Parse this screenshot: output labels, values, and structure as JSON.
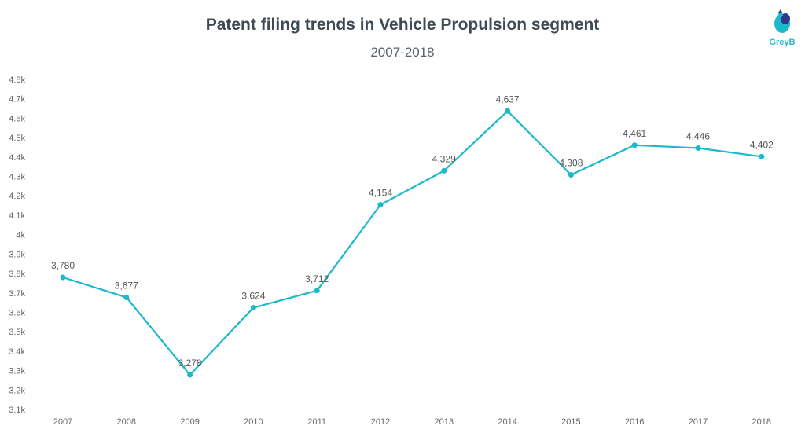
{
  "title": "Patent filing trends in Vehicle Propulsion segment",
  "subtitle": "2007-2018",
  "logo": {
    "text": "GreyB",
    "icon": "greyb-bird-icon"
  },
  "colors": {
    "line": "#1bb9c9",
    "title": "#3f4a54"
  },
  "chart_data": {
    "type": "line",
    "title": "Patent filing trends in Vehicle Propulsion segment",
    "subtitle": "2007-2018",
    "categories": [
      "2007",
      "2008",
      "2009",
      "2010",
      "2011",
      "2012",
      "2013",
      "2014",
      "2015",
      "2016",
      "2017",
      "2018"
    ],
    "series": [
      {
        "values": [
          3780,
          3677,
          3278,
          3624,
          3712,
          4154,
          4329,
          4637,
          4308,
          4461,
          4446,
          4402
        ]
      }
    ],
    "data_labels": [
      "3,780",
      "3,677",
      "3,278",
      "3,624",
      "3,712",
      "4,154",
      "4,329",
      "4,637",
      "4,308",
      "4,461",
      "4,446",
      "4,402"
    ],
    "ylim": [
      3100,
      4800
    ],
    "yticks": [
      3100,
      3200,
      3300,
      3400,
      3500,
      3600,
      3700,
      3800,
      3900,
      4000,
      4100,
      4200,
      4300,
      4400,
      4500,
      4600,
      4700,
      4800
    ],
    "ytick_labels": [
      "3.1k",
      "3.2k",
      "3.3k",
      "3.4k",
      "3.5k",
      "3.6k",
      "3.7k",
      "3.8k",
      "3.9k",
      "4k",
      "4.1k",
      "4.2k",
      "4.3k",
      "4.4k",
      "4.5k",
      "4.6k",
      "4.7k",
      "4.8k"
    ],
    "grid": false,
    "legend": "none"
  }
}
